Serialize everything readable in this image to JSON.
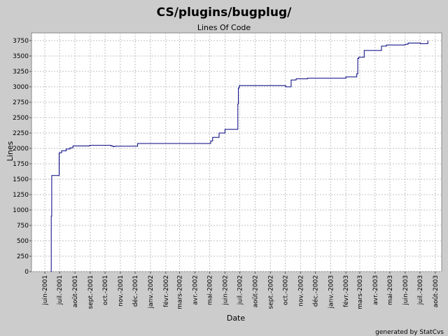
{
  "chart_data": {
    "type": "line",
    "title": "CS/plugins/bugplug/",
    "subtitle": "Lines Of Code",
    "xlabel": "Date",
    "ylabel": "Lines",
    "ylim": [
      0,
      3875
    ],
    "yticks": [
      0,
      250,
      500,
      750,
      1000,
      1250,
      1500,
      1750,
      2000,
      2250,
      2500,
      2750,
      3000,
      3250,
      3500,
      3750
    ],
    "xlim": [
      "2001-05-05",
      "2003-08-14"
    ],
    "x_ticks": [
      {
        "date": "2001-06-01",
        "label": "juin-2001"
      },
      {
        "date": "2001-07-01",
        "label": "juil.-2001"
      },
      {
        "date": "2001-08-01",
        "label": "août-2001"
      },
      {
        "date": "2001-09-01",
        "label": "sept.-2001"
      },
      {
        "date": "2001-10-01",
        "label": "oct.-2001"
      },
      {
        "date": "2001-11-01",
        "label": "nov.-2001"
      },
      {
        "date": "2001-12-01",
        "label": "déc.-2001"
      },
      {
        "date": "2002-01-01",
        "label": "janv.-2002"
      },
      {
        "date": "2002-02-01",
        "label": "févr.-2002"
      },
      {
        "date": "2002-03-01",
        "label": "mars-2002"
      },
      {
        "date": "2002-04-01",
        "label": "avr.-2002"
      },
      {
        "date": "2002-05-01",
        "label": "mai-2002"
      },
      {
        "date": "2002-06-01",
        "label": "juin-2002"
      },
      {
        "date": "2002-07-01",
        "label": "juil.-2002"
      },
      {
        "date": "2002-08-01",
        "label": "août-2002"
      },
      {
        "date": "2002-09-01",
        "label": "sept.-2002"
      },
      {
        "date": "2002-10-01",
        "label": "oct.-2002"
      },
      {
        "date": "2002-11-01",
        "label": "nov.-2002"
      },
      {
        "date": "2002-12-01",
        "label": "déc.-2002"
      },
      {
        "date": "2003-01-01",
        "label": "janv.-2003"
      },
      {
        "date": "2003-02-01",
        "label": "févr.-2003"
      },
      {
        "date": "2003-03-01",
        "label": "mars-2003"
      },
      {
        "date": "2003-04-01",
        "label": "avr.-2003"
      },
      {
        "date": "2003-05-01",
        "label": "mai-2003"
      },
      {
        "date": "2003-06-01",
        "label": "juin-2003"
      },
      {
        "date": "2003-07-01",
        "label": "juil.-2003"
      },
      {
        "date": "2003-08-01",
        "label": "août-2003"
      }
    ],
    "grid": true,
    "line_color": "#000080",
    "series": [
      {
        "points": [
          {
            "x": "2001-06-13",
            "y": 0
          },
          {
            "x": "2001-06-14",
            "y": 900
          },
          {
            "x": "2001-06-15",
            "y": 1560
          },
          {
            "x": "2001-06-29",
            "y": 1560
          },
          {
            "x": "2001-06-30",
            "y": 1930
          },
          {
            "x": "2001-07-05",
            "y": 1960
          },
          {
            "x": "2001-07-14",
            "y": 1990
          },
          {
            "x": "2001-07-22",
            "y": 2010
          },
          {
            "x": "2001-07-28",
            "y": 2040
          },
          {
            "x": "2001-08-31",
            "y": 2050
          },
          {
            "x": "2001-10-13",
            "y": 2040
          },
          {
            "x": "2001-10-17",
            "y": 2030
          },
          {
            "x": "2001-10-21",
            "y": 2035
          },
          {
            "x": "2001-12-05",
            "y": 2035
          },
          {
            "x": "2001-12-06",
            "y": 2080
          },
          {
            "x": "2002-05-01",
            "y": 2080
          },
          {
            "x": "2002-05-03",
            "y": 2120
          },
          {
            "x": "2002-05-07",
            "y": 2180
          },
          {
            "x": "2002-05-20",
            "y": 2250
          },
          {
            "x": "2002-06-01",
            "y": 2310
          },
          {
            "x": "2002-06-26",
            "y": 2310
          },
          {
            "x": "2002-06-27",
            "y": 2720
          },
          {
            "x": "2002-06-28",
            "y": 2980
          },
          {
            "x": "2002-06-30",
            "y": 3020
          },
          {
            "x": "2002-09-30",
            "y": 3020
          },
          {
            "x": "2002-10-02",
            "y": 3000
          },
          {
            "x": "2002-10-12",
            "y": 3000
          },
          {
            "x": "2002-10-13",
            "y": 3110
          },
          {
            "x": "2002-10-23",
            "y": 3130
          },
          {
            "x": "2002-11-07",
            "y": 3130
          },
          {
            "x": "2002-11-15",
            "y": 3140
          },
          {
            "x": "2003-01-30",
            "y": 3140
          },
          {
            "x": "2003-02-01",
            "y": 3160
          },
          {
            "x": "2003-02-18",
            "y": 3160
          },
          {
            "x": "2003-02-23",
            "y": 3210
          },
          {
            "x": "2003-02-25",
            "y": 3460
          },
          {
            "x": "2003-02-27",
            "y": 3480
          },
          {
            "x": "2003-03-08",
            "y": 3480
          },
          {
            "x": "2003-03-10",
            "y": 3590
          },
          {
            "x": "2003-04-12",
            "y": 3590
          },
          {
            "x": "2003-04-14",
            "y": 3660
          },
          {
            "x": "2003-04-24",
            "y": 3680
          },
          {
            "x": "2003-06-01",
            "y": 3690
          },
          {
            "x": "2003-06-07",
            "y": 3710
          },
          {
            "x": "2003-07-01",
            "y": 3710
          },
          {
            "x": "2003-07-02",
            "y": 3700
          },
          {
            "x": "2003-07-16",
            "y": 3700
          },
          {
            "x": "2003-07-17",
            "y": 3750
          }
        ]
      }
    ]
  },
  "footer": {
    "credit": "generated by StatCvs"
  }
}
